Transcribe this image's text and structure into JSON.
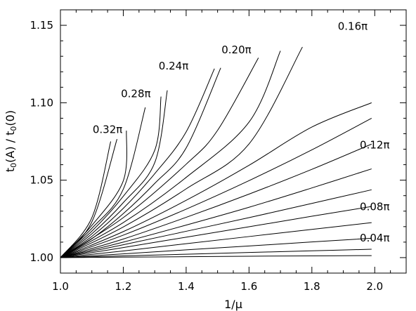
{
  "chart_data": {
    "type": "line",
    "title": "",
    "xlabel": "1/μ",
    "ylabel": "t₀(A) / t₀(0)",
    "ylabel_parts": {
      "t1": "t",
      "s1": "0",
      "m1": "(A)  /  t",
      "s2": "0",
      "m2": "(0)"
    },
    "xlim": [
      1.0,
      2.1
    ],
    "ylim": [
      0.99,
      1.16
    ],
    "x_ticks": [
      1.0,
      1.2,
      1.4,
      1.6,
      1.8,
      2.0
    ],
    "x_tick_labels": [
      "1.0",
      "1.2",
      "1.4",
      "1.6",
      "1.8",
      "2.0"
    ],
    "y_ticks": [
      1.0,
      1.05,
      1.1,
      1.15
    ],
    "y_tick_labels": [
      "1.00",
      "1.05",
      "1.10",
      "1.15"
    ],
    "grid": false,
    "series": [
      {
        "x": [
          1.0,
          1.2,
          1.4,
          1.6,
          1.8,
          1.99
        ],
        "y": [
          1.0,
          1.0003,
          1.0006,
          1.0009,
          1.0011,
          1.0013
        ]
      },
      {
        "x": [
          1.0,
          1.2,
          1.4,
          1.6,
          1.8,
          1.99
        ],
        "y": [
          1.0,
          1.0011,
          1.0022,
          1.0033,
          1.0044,
          1.0054
        ]
      },
      {
        "x": [
          1.0,
          1.2,
          1.4,
          1.6,
          1.8,
          1.99
        ],
        "y": [
          1.0,
          1.0024,
          1.005,
          1.0075,
          1.0101,
          1.0125
        ]
      },
      {
        "x": [
          1.0,
          1.2,
          1.4,
          1.6,
          1.8,
          1.99
        ],
        "y": [
          1.0,
          1.0043,
          1.009,
          1.0136,
          1.0182,
          1.0226
        ]
      },
      {
        "x": [
          1.0,
          1.2,
          1.4,
          1.6,
          1.8,
          1.99
        ],
        "y": [
          1.0,
          1.0065,
          1.0132,
          1.0199,
          1.0267,
          1.033
        ]
      },
      {
        "x": [
          1.0,
          1.2,
          1.4,
          1.6,
          1.8,
          1.99
        ],
        "y": [
          1.0,
          1.0083,
          1.017,
          1.0258,
          1.035,
          1.0438
        ]
      },
      {
        "x": [
          1.0,
          1.2,
          1.4,
          1.6,
          1.8,
          1.99
        ],
        "y": [
          1.0,
          1.01,
          1.021,
          1.0325,
          1.045,
          1.0573
        ]
      },
      {
        "x": [
          1.0,
          1.2,
          1.4,
          1.6,
          1.8,
          1.99
        ],
        "y": [
          1.0,
          1.012,
          1.026,
          1.041,
          1.057,
          1.0733
        ]
      },
      {
        "x": [
          1.0,
          1.2,
          1.4,
          1.6,
          1.8,
          1.99
        ],
        "y": [
          1.0,
          1.0145,
          1.0313,
          1.0497,
          1.0696,
          1.09
        ]
      },
      {
        "x": [
          1.0,
          1.2,
          1.4,
          1.6,
          1.8,
          1.99
        ],
        "y": [
          1.0,
          1.0168,
          1.037,
          1.0596,
          1.0843,
          1.1
        ]
      },
      {
        "x": [
          1.0,
          1.2,
          1.4,
          1.6,
          1.77
        ],
        "y": [
          1.0,
          1.0198,
          1.0444,
          1.0734,
          1.136
        ]
      },
      {
        "x": [
          1.0,
          1.2,
          1.4,
          1.6,
          1.7
        ],
        "y": [
          1.0,
          1.0226,
          1.0518,
          1.0875,
          1.1335
        ]
      },
      {
        "x": [
          1.0,
          1.2,
          1.4,
          1.5,
          1.63
        ],
        "y": [
          1.0,
          1.0258,
          1.0603,
          1.0822,
          1.129
        ]
      },
      {
        "x": [
          1.0,
          1.1,
          1.2,
          1.3,
          1.4,
          1.51
        ],
        "y": [
          1.0,
          1.0122,
          1.0284,
          1.0479,
          1.0708,
          1.1225
        ]
      },
      {
        "x": [
          1.0,
          1.1,
          1.2,
          1.3,
          1.4,
          1.49
        ],
        "y": [
          1.0,
          1.0137,
          1.0318,
          1.0542,
          1.0812,
          1.122
        ]
      },
      {
        "x": [
          1.0,
          1.1,
          1.2,
          1.3,
          1.34
        ],
        "y": [
          1.0,
          1.0154,
          1.0355,
          1.0613,
          1.108
        ]
      },
      {
        "x": [
          1.0,
          1.1,
          1.2,
          1.3,
          1.32
        ],
        "y": [
          1.0,
          1.0171,
          1.0396,
          1.0693,
          1.104
        ]
      },
      {
        "x": [
          1.0,
          1.1,
          1.2,
          1.27
        ],
        "y": [
          1.0,
          1.0189,
          1.0442,
          1.097
        ]
      },
      {
        "x": [
          1.0,
          1.1,
          1.2,
          1.21
        ],
        "y": [
          1.0,
          1.0208,
          1.0496,
          1.082
        ]
      },
      {
        "x": [
          1.0,
          1.1,
          1.18
        ],
        "y": [
          1.0,
          1.0231,
          1.0765
        ]
      },
      {
        "x": [
          1.0,
          1.1,
          1.16
        ],
        "y": [
          1.0,
          1.0258,
          1.075
        ]
      }
    ],
    "annotations": [
      {
        "text": "0.16π",
        "x": 1.93,
        "y": 1.147
      },
      {
        "text": "0.20π",
        "x": 1.56,
        "y": 1.132
      },
      {
        "text": "0.24π",
        "x": 1.36,
        "y": 1.1215
      },
      {
        "text": "0.28π",
        "x": 1.24,
        "y": 1.1035
      },
      {
        "text": "0.32π",
        "x": 1.15,
        "y": 1.0805
      },
      {
        "text": "0.12π",
        "x": 2.0,
        "y": 1.0705
      },
      {
        "text": "0.08π",
        "x": 2.0,
        "y": 1.0305
      },
      {
        "text": "0.04π",
        "x": 2.0,
        "y": 1.0105
      }
    ]
  }
}
